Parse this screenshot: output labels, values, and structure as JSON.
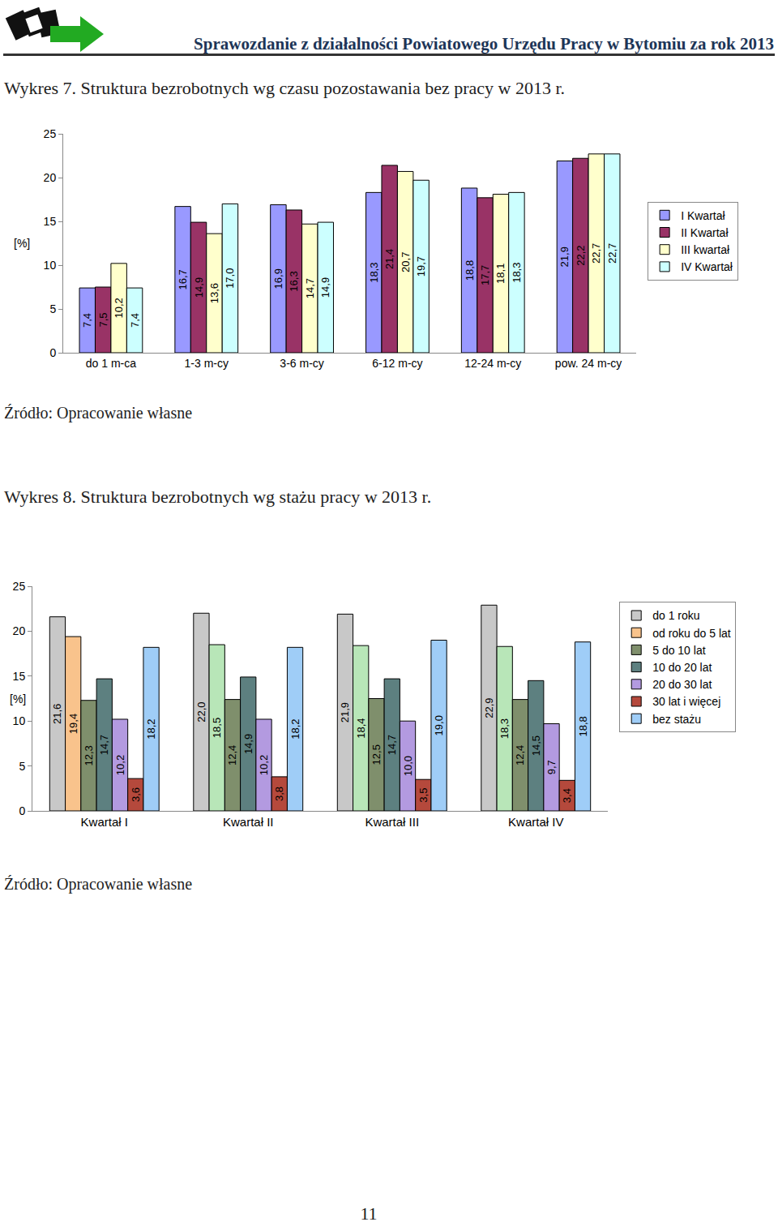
{
  "header": "Sprawozdanie z działalności Powiatowego Urzędu Pracy w Bytomiu za rok 2013",
  "chart_data": [
    {
      "type": "bar",
      "title": "Wykres 7. Struktura bezrobotnych wg czasu pozostawania bez pracy w 2013 r.",
      "source": "Źródło: Opracowanie własne",
      "y_label": "[%]",
      "categories": [
        "do 1 m-ca",
        "1-3 m-cy",
        "3-6 m-cy",
        "6-12 m-cy",
        "12-24 m-cy",
        "pow. 24 m-cy"
      ],
      "series": [
        {
          "name": "I Kwartał",
          "color": "#9999ff",
          "values": [
            7.4,
            16.7,
            16.9,
            18.3,
            18.8,
            21.9
          ],
          "value_labels": [
            "7,4",
            "16,7",
            "16,9",
            "18,3",
            "18,8",
            "21,9"
          ]
        },
        {
          "name": "II Kwartał",
          "color": "#993366",
          "values": [
            7.5,
            14.9,
            16.3,
            21.4,
            17.7,
            22.2
          ],
          "value_labels": [
            "7,5",
            "14,9",
            "16,3",
            "21,4",
            "17,7",
            "22,2"
          ]
        },
        {
          "name": "III kwartał",
          "color": "#ffffcc",
          "values": [
            10.2,
            13.6,
            14.7,
            20.7,
            18.1,
            22.7
          ],
          "value_labels": [
            "10,2",
            "13,6",
            "14,7",
            "20,7",
            "18,1",
            "22,7"
          ]
        },
        {
          "name": "IV Kwartał",
          "color": "#ccffff",
          "values": [
            7.4,
            17.0,
            14.9,
            19.7,
            18.3,
            22.7
          ],
          "value_labels": [
            "7,4",
            "17,0",
            "14,9",
            "19,7",
            "18,3",
            "22,7"
          ]
        }
      ],
      "ylim": [
        0,
        25
      ],
      "yticks": [
        0,
        5,
        10,
        15,
        20,
        25
      ],
      "grid": false,
      "legend": "right",
      "data_labels": true
    },
    {
      "type": "bar",
      "title": "Wykres 8. Struktura bezrobotnych wg stażu pracy w 2013 r.",
      "source": "Źródło: Opracowanie własne",
      "y_label": "[%]",
      "categories": [
        "Kwartał I",
        "Kwartał II",
        "Kwartał III",
        "Kwartał IV"
      ],
      "series": [
        {
          "name": "do 1 roku",
          "color": "#c8c8c8",
          "values": [
            21.6,
            22.0,
            21.9,
            22.9
          ],
          "value_labels": [
            "21,6",
            "22,0",
            "21,9",
            "22,9"
          ]
        },
        {
          "name": "od roku do 5 lat",
          "color": "#b8e6b8",
          "colors": [
            "#f9c38c",
            "#b8e6b8",
            "#b8e6b8",
            "#b8e6b8"
          ],
          "values": [
            19.4,
            18.5,
            18.4,
            18.3
          ],
          "value_labels": [
            "19,4",
            "18,5",
            "18,4",
            "18,3"
          ]
        },
        {
          "name": "5 do 10 lat",
          "color": "#7f8f6c",
          "values": [
            12.3,
            12.4,
            12.5,
            12.4
          ],
          "value_labels": [
            "12,3",
            "12,4",
            "12,5",
            "12,4"
          ]
        },
        {
          "name": "10 do 20 lat",
          "color": "#5d8080",
          "values": [
            14.7,
            14.9,
            14.7,
            14.5
          ],
          "value_labels": [
            "14,7",
            "14,9",
            "14,7",
            "14,5"
          ]
        },
        {
          "name": "20 do 30 lat",
          "color": "#b39ae0",
          "values": [
            10.2,
            10.2,
            10.0,
            9.7
          ],
          "value_labels": [
            "10,2",
            "10,2",
            "10,0",
            "9,7"
          ]
        },
        {
          "name": "30 lat i więcej",
          "color": "#b5493c",
          "values": [
            3.6,
            3.8,
            3.5,
            3.4
          ],
          "value_labels": [
            "3,6",
            "3,8",
            "3,5",
            "3,4"
          ]
        },
        {
          "name": "bez stażu",
          "color": "#9fcdf7",
          "values": [
            18.2,
            18.2,
            19.0,
            18.8
          ],
          "value_labels": [
            "18,2",
            "18,2",
            "19,0",
            "18,8"
          ]
        }
      ],
      "ylim": [
        0,
        25
      ],
      "yticks": [
        0,
        5,
        10,
        15,
        20,
        25
      ],
      "grid": false,
      "legend": "right",
      "data_labels": true
    }
  ],
  "page_number": "11"
}
